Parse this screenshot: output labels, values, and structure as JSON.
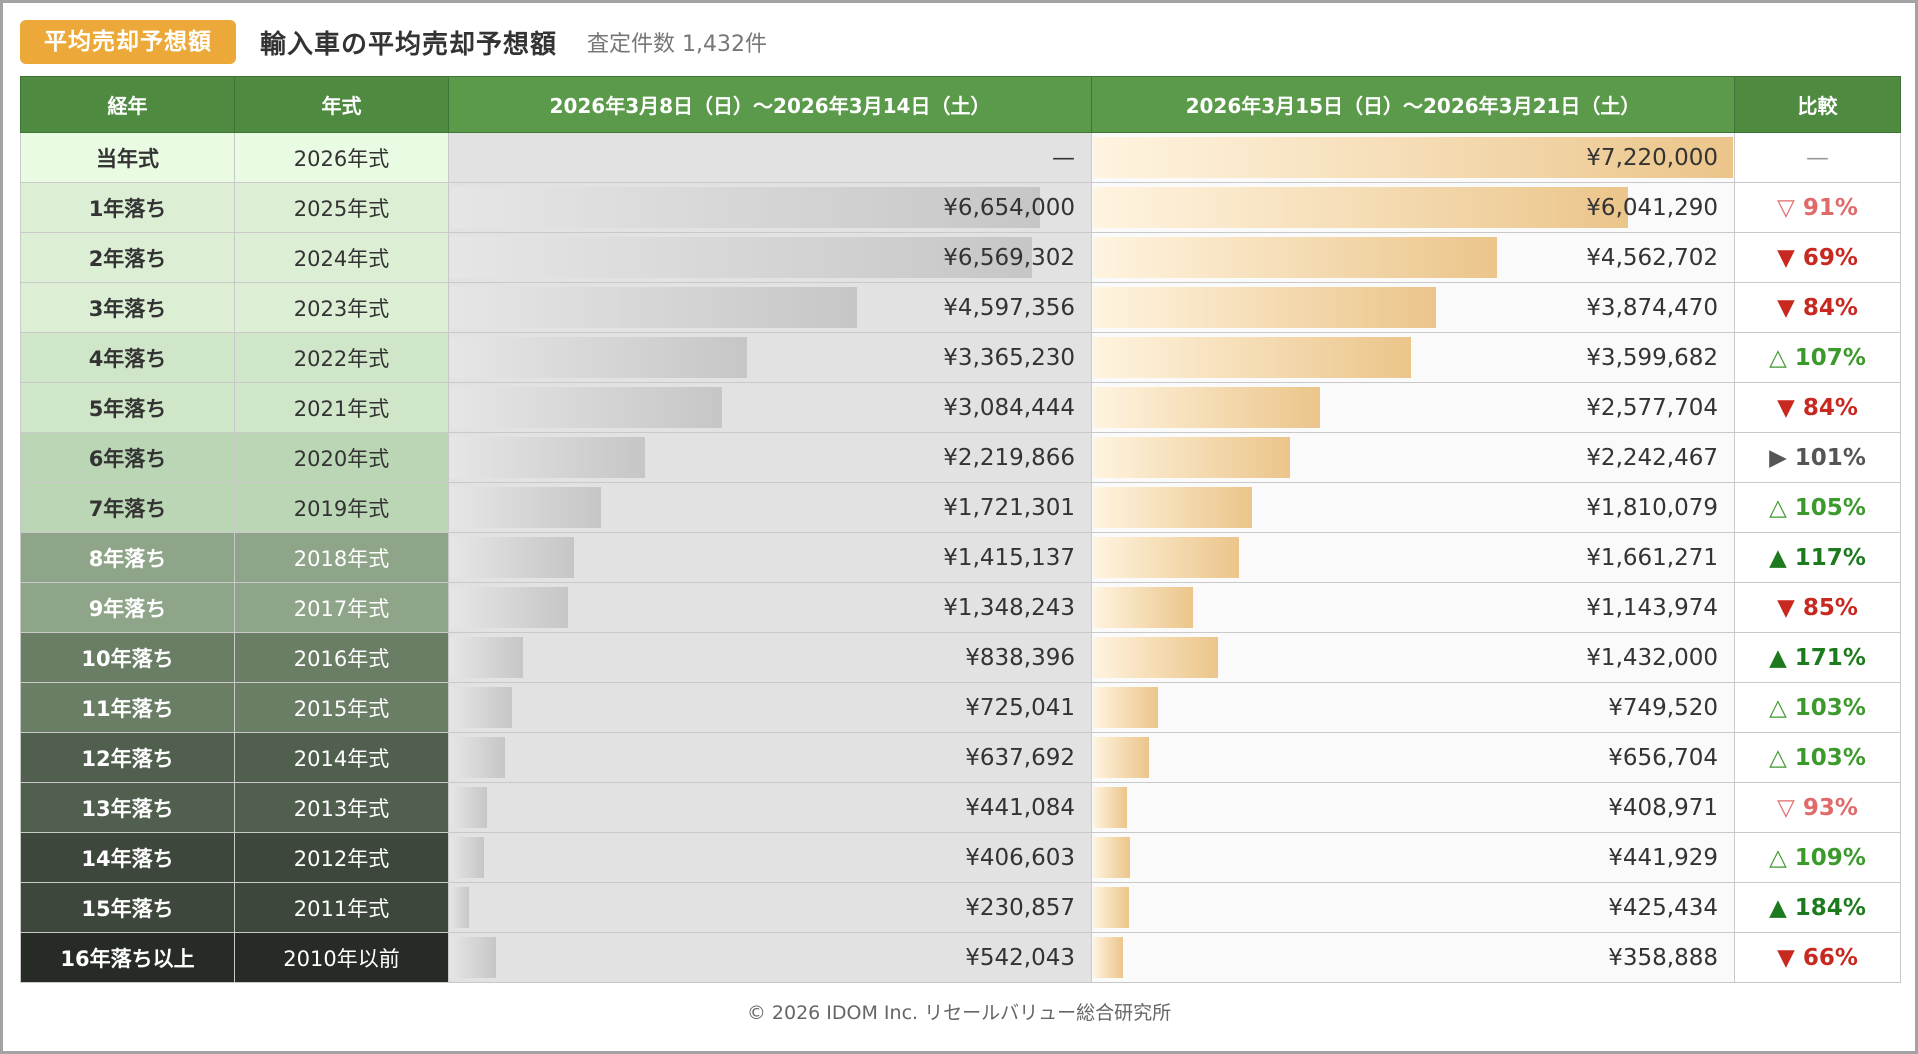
{
  "header": {
    "badge": "平均売却予想額",
    "title": "輸入車の平均売却予想額",
    "count": "査定件数 1,432件"
  },
  "table": {
    "columns": {
      "age": "経年",
      "model": "年式",
      "period1": "2026年3月8日（日）〜2026年3月14日（土）",
      "period2": "2026年3月15日（日）〜2026年3月21日（土）",
      "compare": "比較"
    }
  },
  "chart_data": {
    "type": "table",
    "bar_max": 7220000,
    "series": [
      {
        "name": "2026年3月8日（日）〜2026年3月14日（土）"
      },
      {
        "name": "2026年3月15日（日）〜2026年3月21日（土）"
      }
    ],
    "rows": [
      {
        "age": "当年式",
        "model": "2026年式",
        "v1": null,
        "v1_text": "—",
        "v2": 7220000,
        "v2_text": "¥7,220,000",
        "cmp": "—",
        "cmp_color": "#999999",
        "age_bg": "#E9FBE2",
        "age_fg": "#333333",
        "model_bg": "#E9FBE2",
        "model_fg": "#333333"
      },
      {
        "age": "1年落ち",
        "model": "2025年式",
        "v1": 6654000,
        "v1_text": "¥6,654,000",
        "v2": 6041290,
        "v2_text": "¥6,041,290",
        "cmp": "▽ 91%",
        "cmp_color": "#E06A6A",
        "age_bg": "#DCEFD5",
        "age_fg": "#333333",
        "model_bg": "#DCEFD5",
        "model_fg": "#333333"
      },
      {
        "age": "2年落ち",
        "model": "2024年式",
        "v1": 6569302,
        "v1_text": "¥6,569,302",
        "v2": 4562702,
        "v2_text": "¥4,562,702",
        "cmp": "▼ 69%",
        "cmp_color": "#C7281F",
        "age_bg": "#DCEFD5",
        "age_fg": "#333333",
        "model_bg": "#DCEFD5",
        "model_fg": "#333333"
      },
      {
        "age": "3年落ち",
        "model": "2023年式",
        "v1": 4597356,
        "v1_text": "¥4,597,356",
        "v2": 3874470,
        "v2_text": "¥3,874,470",
        "cmp": "▼ 84%",
        "cmp_color": "#C7281F",
        "age_bg": "#DCEFD5",
        "age_fg": "#333333",
        "model_bg": "#DCEFD5",
        "model_fg": "#333333"
      },
      {
        "age": "4年落ち",
        "model": "2022年式",
        "v1": 3365230,
        "v1_text": "¥3,365,230",
        "v2": 3599682,
        "v2_text": "¥3,599,682",
        "cmp": "△ 107%",
        "cmp_color": "#3C9A2C",
        "age_bg": "#CFE6C8",
        "age_fg": "#333333",
        "model_bg": "#CFE6C8",
        "model_fg": "#333333"
      },
      {
        "age": "5年落ち",
        "model": "2021年式",
        "v1": 3084444,
        "v1_text": "¥3,084,444",
        "v2": 2577704,
        "v2_text": "¥2,577,704",
        "cmp": "▼ 84%",
        "cmp_color": "#C7281F",
        "age_bg": "#CFE6C8",
        "age_fg": "#333333",
        "model_bg": "#CFE6C8",
        "model_fg": "#333333"
      },
      {
        "age": "6年落ち",
        "model": "2020年式",
        "v1": 2219866,
        "v1_text": "¥2,219,866",
        "v2": 2242467,
        "v2_text": "¥2,242,467",
        "cmp": "▶ 101%",
        "cmp_color": "#555555",
        "age_bg": "#BBD6B4",
        "age_fg": "#333333",
        "model_bg": "#BBD6B4",
        "model_fg": "#333333"
      },
      {
        "age": "7年落ち",
        "model": "2019年式",
        "v1": 1721301,
        "v1_text": "¥1,721,301",
        "v2": 1810079,
        "v2_text": "¥1,810,079",
        "cmp": "△ 105%",
        "cmp_color": "#3C9A2C",
        "age_bg": "#BBD6B4",
        "age_fg": "#333333",
        "model_bg": "#BBD6B4",
        "model_fg": "#333333"
      },
      {
        "age": "8年落ち",
        "model": "2018年式",
        "v1": 1415137,
        "v1_text": "¥1,415,137",
        "v2": 1661271,
        "v2_text": "¥1,661,271",
        "cmp": "▲ 117%",
        "cmp_color": "#1E7A1E",
        "age_bg": "#8FA58A",
        "age_fg": "#ffffff",
        "model_bg": "#8FA58A",
        "model_fg": "#ffffff"
      },
      {
        "age": "9年落ち",
        "model": "2017年式",
        "v1": 1348243,
        "v1_text": "¥1,348,243",
        "v2": 1143974,
        "v2_text": "¥1,143,974",
        "cmp": "▼ 85%",
        "cmp_color": "#C7281F",
        "age_bg": "#8FA58A",
        "age_fg": "#ffffff",
        "model_bg": "#8FA58A",
        "model_fg": "#ffffff"
      },
      {
        "age": "10年落ち",
        "model": "2016年式",
        "v1": 838396,
        "v1_text": "¥838,396",
        "v2": 1432000,
        "v2_text": "¥1,432,000",
        "cmp": "▲ 171%",
        "cmp_color": "#1E7A1E",
        "age_bg": "#6A7E66",
        "age_fg": "#ffffff",
        "model_bg": "#6A7E66",
        "model_fg": "#ffffff"
      },
      {
        "age": "11年落ち",
        "model": "2015年式",
        "v1": 725041,
        "v1_text": "¥725,041",
        "v2": 749520,
        "v2_text": "¥749,520",
        "cmp": "△ 103%",
        "cmp_color": "#3C9A2C",
        "age_bg": "#6A7E66",
        "age_fg": "#ffffff",
        "model_bg": "#6A7E66",
        "model_fg": "#ffffff"
      },
      {
        "age": "12年落ち",
        "model": "2014年式",
        "v1": 637692,
        "v1_text": "¥637,692",
        "v2": 656704,
        "v2_text": "¥656,704",
        "cmp": "△ 103%",
        "cmp_color": "#3C9A2C",
        "age_bg": "#515F4E",
        "age_fg": "#ffffff",
        "model_bg": "#515F4E",
        "model_fg": "#ffffff"
      },
      {
        "age": "13年落ち",
        "model": "2013年式",
        "v1": 441084,
        "v1_text": "¥441,084",
        "v2": 408971,
        "v2_text": "¥408,971",
        "cmp": "▽ 93%",
        "cmp_color": "#E06A6A",
        "age_bg": "#515F4E",
        "age_fg": "#ffffff",
        "model_bg": "#515F4E",
        "model_fg": "#ffffff"
      },
      {
        "age": "14年落ち",
        "model": "2012年式",
        "v1": 406603,
        "v1_text": "¥406,603",
        "v2": 441929,
        "v2_text": "¥441,929",
        "cmp": "△ 109%",
        "cmp_color": "#3C9A2C",
        "age_bg": "#3E473C",
        "age_fg": "#ffffff",
        "model_bg": "#3E473C",
        "model_fg": "#ffffff"
      },
      {
        "age": "15年落ち",
        "model": "2011年式",
        "v1": 230857,
        "v1_text": "¥230,857",
        "v2": 425434,
        "v2_text": "¥425,434",
        "cmp": "▲ 184%",
        "cmp_color": "#1E7A1E",
        "age_bg": "#3E473C",
        "age_fg": "#ffffff",
        "model_bg": "#3E473C",
        "model_fg": "#ffffff"
      },
      {
        "age": "16年落ち以上",
        "model": "2010年以前",
        "v1": 542043,
        "v1_text": "¥542,043",
        "v2": 358888,
        "v2_text": "¥358,888",
        "cmp": "▼ 66%",
        "cmp_color": "#C7281F",
        "age_bg": "#262B26",
        "age_fg": "#ffffff",
        "model_bg": "#262B26",
        "model_fg": "#ffffff"
      }
    ]
  },
  "footer": {
    "copyright": "© 2026 IDOM Inc. リセールバリュー総合研究所"
  }
}
